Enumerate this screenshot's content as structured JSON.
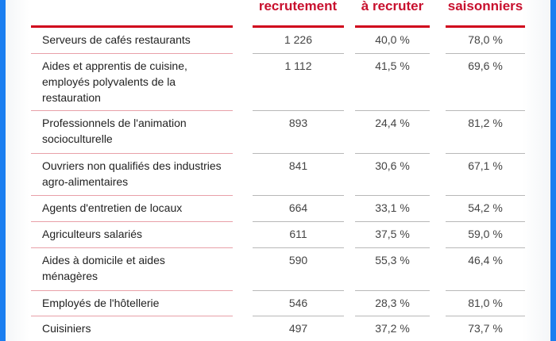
{
  "table": {
    "headers": [
      {
        "label": ""
      },
      {
        "label": "recrutement"
      },
      {
        "label": "à recruter"
      },
      {
        "label": "saisonniers"
      }
    ],
    "rows": [
      {
        "metier": "Serveurs de cafés restaurants",
        "lines": [
          "Serveurs de cafés restaurants"
        ],
        "projets": "1 226",
        "difficiles": "40,0 %",
        "saisonniers": "78,0 %"
      },
      {
        "metier": "Aides et apprentis de cuisine, employés polyvalents de la restauration",
        "lines": [
          "Aides et apprentis de cuisine,",
          "employés polyvalents de la",
          "restauration"
        ],
        "projets": "1 112",
        "difficiles": "41,5 %",
        "saisonniers": "69,6 %"
      },
      {
        "metier": "Professionnels de l'animation socioculturelle",
        "lines": [
          "Professionnels de l'animation",
          "socioculturelle"
        ],
        "projets": "893",
        "difficiles": "24,4 %",
        "saisonniers": "81,2 %"
      },
      {
        "metier": "Ouvriers non qualifiés des industries agro-alimentaires",
        "lines": [
          "Ouvriers non qualifiés des industries",
          "agro-alimentaires"
        ],
        "projets": "841",
        "difficiles": "30,6 %",
        "saisonniers": "67,1 %"
      },
      {
        "metier": "Agents d'entretien de locaux",
        "lines": [
          "Agents d'entretien de locaux"
        ],
        "projets": "664",
        "difficiles": "33,1 %",
        "saisonniers": "54,2 %"
      },
      {
        "metier": "Agriculteurs salariés",
        "lines": [
          "Agriculteurs salariés"
        ],
        "projets": "611",
        "difficiles": "37,5 %",
        "saisonniers": "59,0 %"
      },
      {
        "metier": "Aides à domicile et aides ménagères",
        "lines": [
          "Aides à domicile et aides",
          "ménagères"
        ],
        "projets": "590",
        "difficiles": "55,3 %",
        "saisonniers": "46,4 %"
      },
      {
        "metier": "Employés de l'hôtellerie",
        "lines": [
          "Employés de l'hôtellerie"
        ],
        "projets": "546",
        "difficiles": "28,3 %",
        "saisonniers": "81,0 %"
      },
      {
        "metier": "Cuisiniers",
        "lines": [
          "Cuisiniers"
        ],
        "projets": "497",
        "difficiles": "37,2 %",
        "saisonniers": "73,7 %"
      }
    ]
  },
  "colors": {
    "accent_red": "#d0021b",
    "header_text": "#c8102e",
    "frame_blue": "#1a7ef0"
  }
}
